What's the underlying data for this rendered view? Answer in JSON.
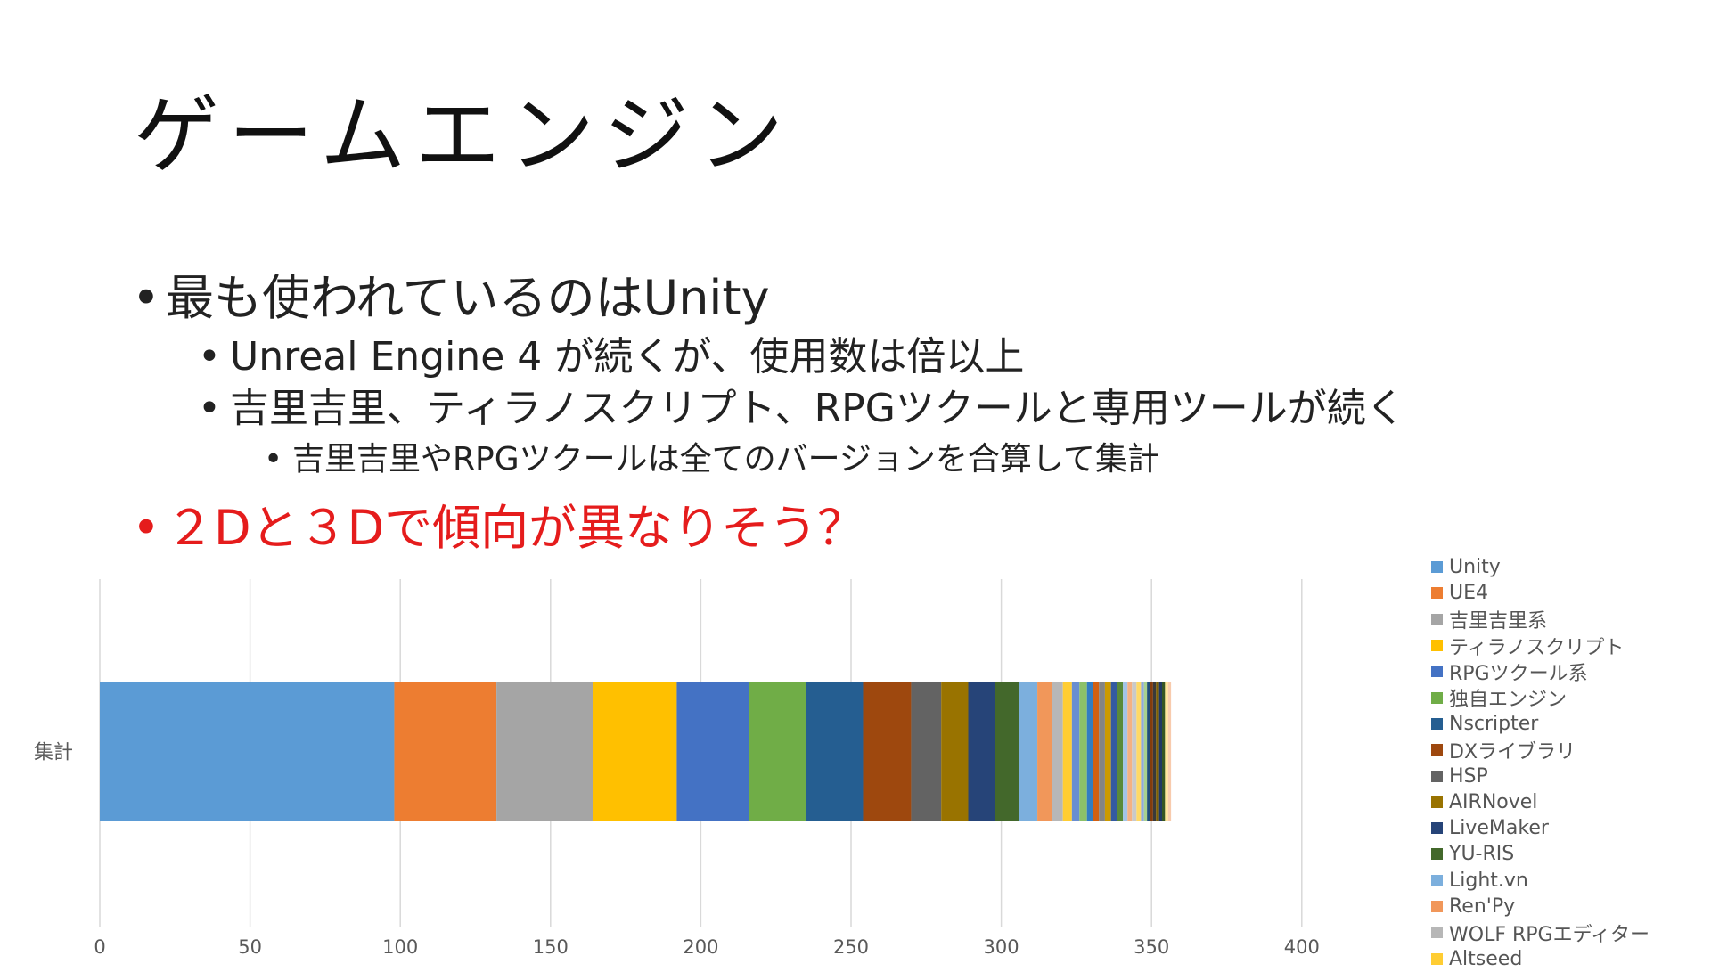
{
  "slide": {
    "title": "ゲームエンジン",
    "bullets": [
      {
        "level": 1,
        "text": "最も使われているのはUnity",
        "color": "#222222"
      },
      {
        "level": 2,
        "text": "Unreal Engine 4 が続くが、使用数は倍以上",
        "color": "#222222"
      },
      {
        "level": 2,
        "text": "吉里吉里、ティラノスクリプト、RPGツクールと専用ツールが続く",
        "color": "#222222"
      },
      {
        "level": 3,
        "text": "吉里吉里やRPGツクールは全てのバージョンを合算して集計",
        "color": "#222222"
      },
      {
        "level": 1,
        "text": "２Dと３Dで傾向が異なりそう？",
        "color": "#e51c1c"
      }
    ]
  },
  "chart_data": {
    "type": "bar",
    "orientation": "horizontal",
    "stacked": true,
    "categories": [
      "集計"
    ],
    "xlim": [
      0,
      400
    ],
    "xticks": [
      0,
      50,
      100,
      150,
      200,
      250,
      300,
      350,
      400
    ],
    "grid": true,
    "legend_position": "right",
    "series": [
      {
        "name": "Unity",
        "values": [
          98
        ],
        "color": "#5b9bd5"
      },
      {
        "name": "UE4",
        "values": [
          34
        ],
        "color": "#ed7d31"
      },
      {
        "name": "吉里吉里系",
        "values": [
          32
        ],
        "color": "#a5a5a5"
      },
      {
        "name": "ティラノスクリプト",
        "values": [
          28
        ],
        "color": "#ffc000"
      },
      {
        "name": "RPGツクール系",
        "values": [
          24
        ],
        "color": "#4472c4"
      },
      {
        "name": "独自エンジン",
        "values": [
          19
        ],
        "color": "#70ad47"
      },
      {
        "name": "Nscripter",
        "values": [
          19
        ],
        "color": "#255e91"
      },
      {
        "name": "DXライブラリ",
        "values": [
          16
        ],
        "color": "#9e480e"
      },
      {
        "name": "HSP",
        "values": [
          10
        ],
        "color": "#636363"
      },
      {
        "name": "AIRNovel",
        "values": [
          9
        ],
        "color": "#997300"
      },
      {
        "name": "LiveMaker",
        "values": [
          9
        ],
        "color": "#264478"
      },
      {
        "name": "YU-RIS",
        "values": [
          8
        ],
        "color": "#43682b"
      },
      {
        "name": "Light.vn",
        "values": [
          6
        ],
        "color": "#7cafdd"
      },
      {
        "name": "Ren'Py",
        "values": [
          5
        ],
        "color": "#f1975a"
      },
      {
        "name": "WOLF RPGエディター",
        "values": [
          3.5
        ],
        "color": "#b7b7b7"
      },
      {
        "name": "Altseed",
        "values": [
          3
        ],
        "color": "#ffcd33"
      },
      {
        "name": "",
        "values": [
          2.5
        ],
        "color": "#698ed0"
      },
      {
        "name": "",
        "values": [
          2.5
        ],
        "color": "#8cc168"
      },
      {
        "name": "",
        "values": [
          2
        ],
        "color": "#327dc2"
      },
      {
        "name": "",
        "values": [
          2
        ],
        "color": "#d26012"
      },
      {
        "name": "",
        "values": [
          2
        ],
        "color": "#848484"
      },
      {
        "name": "",
        "values": [
          2
        ],
        "color": "#cc9a00"
      },
      {
        "name": "",
        "values": [
          2
        ],
        "color": "#335aa1"
      },
      {
        "name": "",
        "values": [
          2
        ],
        "color": "#5a8a39"
      },
      {
        "name": "",
        "values": [
          1.5
        ],
        "color": "#a3c4e8"
      },
      {
        "name": "",
        "values": [
          1.5
        ],
        "color": "#f4b183"
      },
      {
        "name": "",
        "values": [
          1.5
        ],
        "color": "#c9c9c9"
      },
      {
        "name": "",
        "values": [
          1.5
        ],
        "color": "#ffd966"
      },
      {
        "name": "",
        "values": [
          1
        ],
        "color": "#8faadc"
      },
      {
        "name": "",
        "values": [
          1
        ],
        "color": "#a9d18e"
      },
      {
        "name": "",
        "values": [
          1
        ],
        "color": "#1f4e79"
      },
      {
        "name": "",
        "values": [
          1
        ],
        "color": "#843c0c"
      },
      {
        "name": "",
        "values": [
          1
        ],
        "color": "#3a3a3a"
      },
      {
        "name": "",
        "values": [
          1
        ],
        "color": "#7f6000"
      },
      {
        "name": "",
        "values": [
          1
        ],
        "color": "#203864"
      },
      {
        "name": "",
        "values": [
          1
        ],
        "color": "#375623"
      },
      {
        "name": "",
        "values": [
          1
        ],
        "color": "#ffe699"
      },
      {
        "name": "",
        "values": [
          1
        ],
        "color": "#f8cbad"
      }
    ]
  }
}
